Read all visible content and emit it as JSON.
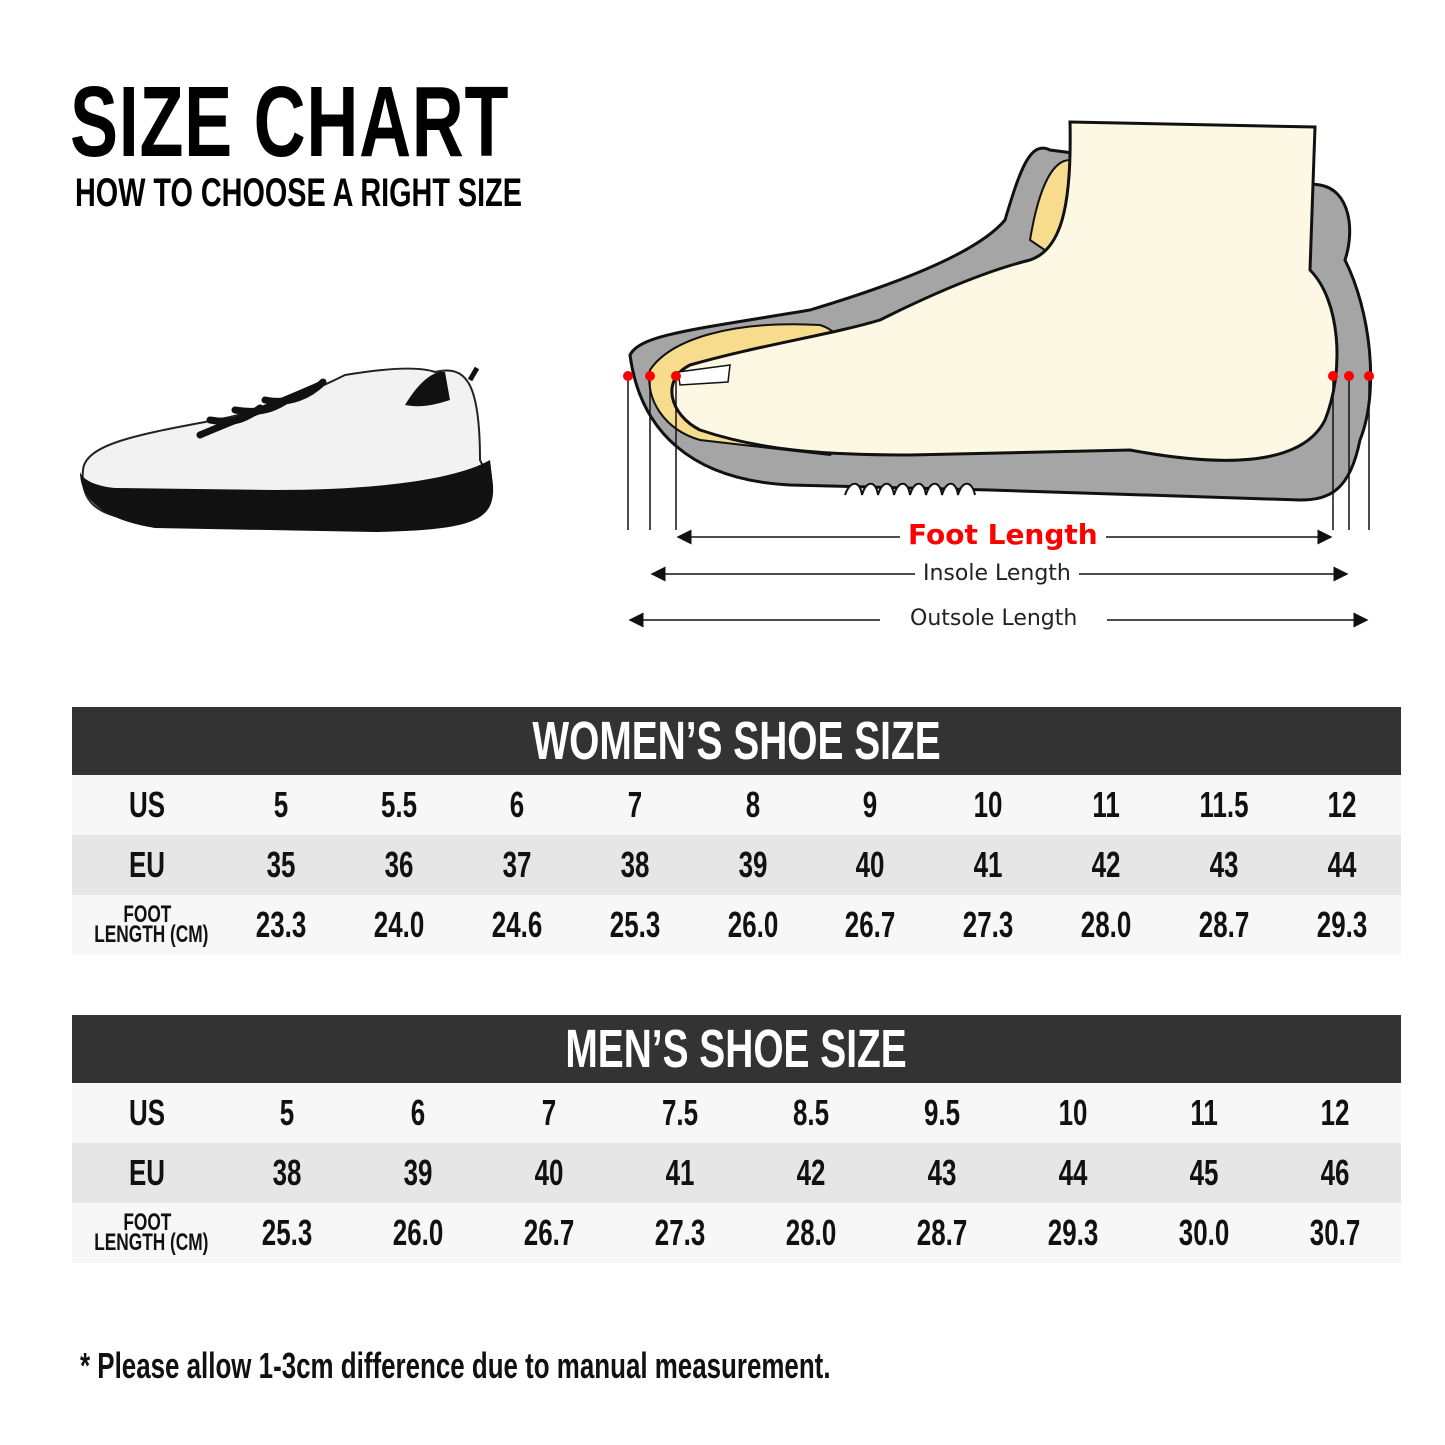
{
  "header": {
    "title": "SIZE CHART",
    "subtitle": "HOW TO CHOOSE A RIGHT SIZE"
  },
  "diagram": {
    "foot_length": "Foot Length",
    "insole_length": "Insole Length",
    "outsole_length": "Outsole Length",
    "colors": {
      "foot_length": "#ff0000",
      "sole": "#a5a5a5",
      "insole": "#f8dc8e",
      "foot": "#fdf8e4"
    }
  },
  "women": {
    "title": "WOMEN’S SHOE SIZE",
    "rows": [
      {
        "label": "US",
        "values": [
          "5",
          "5.5",
          "6",
          "7",
          "8",
          "9",
          "10",
          "11",
          "11.5",
          "12"
        ]
      },
      {
        "label": "EU",
        "values": [
          "35",
          "36",
          "37",
          "38",
          "39",
          "40",
          "41",
          "42",
          "43",
          "44"
        ]
      },
      {
        "label_top": "FOOT",
        "label_bottom": "LENGTH (CM)",
        "values": [
          "23.3",
          "24.0",
          "24.6",
          "25.3",
          "26.0",
          "26.7",
          "27.3",
          "28.0",
          "28.7",
          "29.3"
        ]
      }
    ]
  },
  "men": {
    "title": "MEN’S SHOE SIZE",
    "rows": [
      {
        "label": "US",
        "values": [
          "5",
          "6",
          "7",
          "7.5",
          "8.5",
          "9.5",
          "10",
          "11",
          "12"
        ]
      },
      {
        "label": "EU",
        "values": [
          "38",
          "39",
          "40",
          "41",
          "42",
          "43",
          "44",
          "45",
          "46"
        ]
      },
      {
        "label_top": "FOOT",
        "label_bottom": "LENGTH (CM)",
        "values": [
          "25.3",
          "26.0",
          "26.7",
          "27.3",
          "28.0",
          "28.7",
          "29.3",
          "30.0",
          "30.7"
        ]
      }
    ]
  },
  "note": "* Please allow 1-3cm difference due to manual measurement."
}
